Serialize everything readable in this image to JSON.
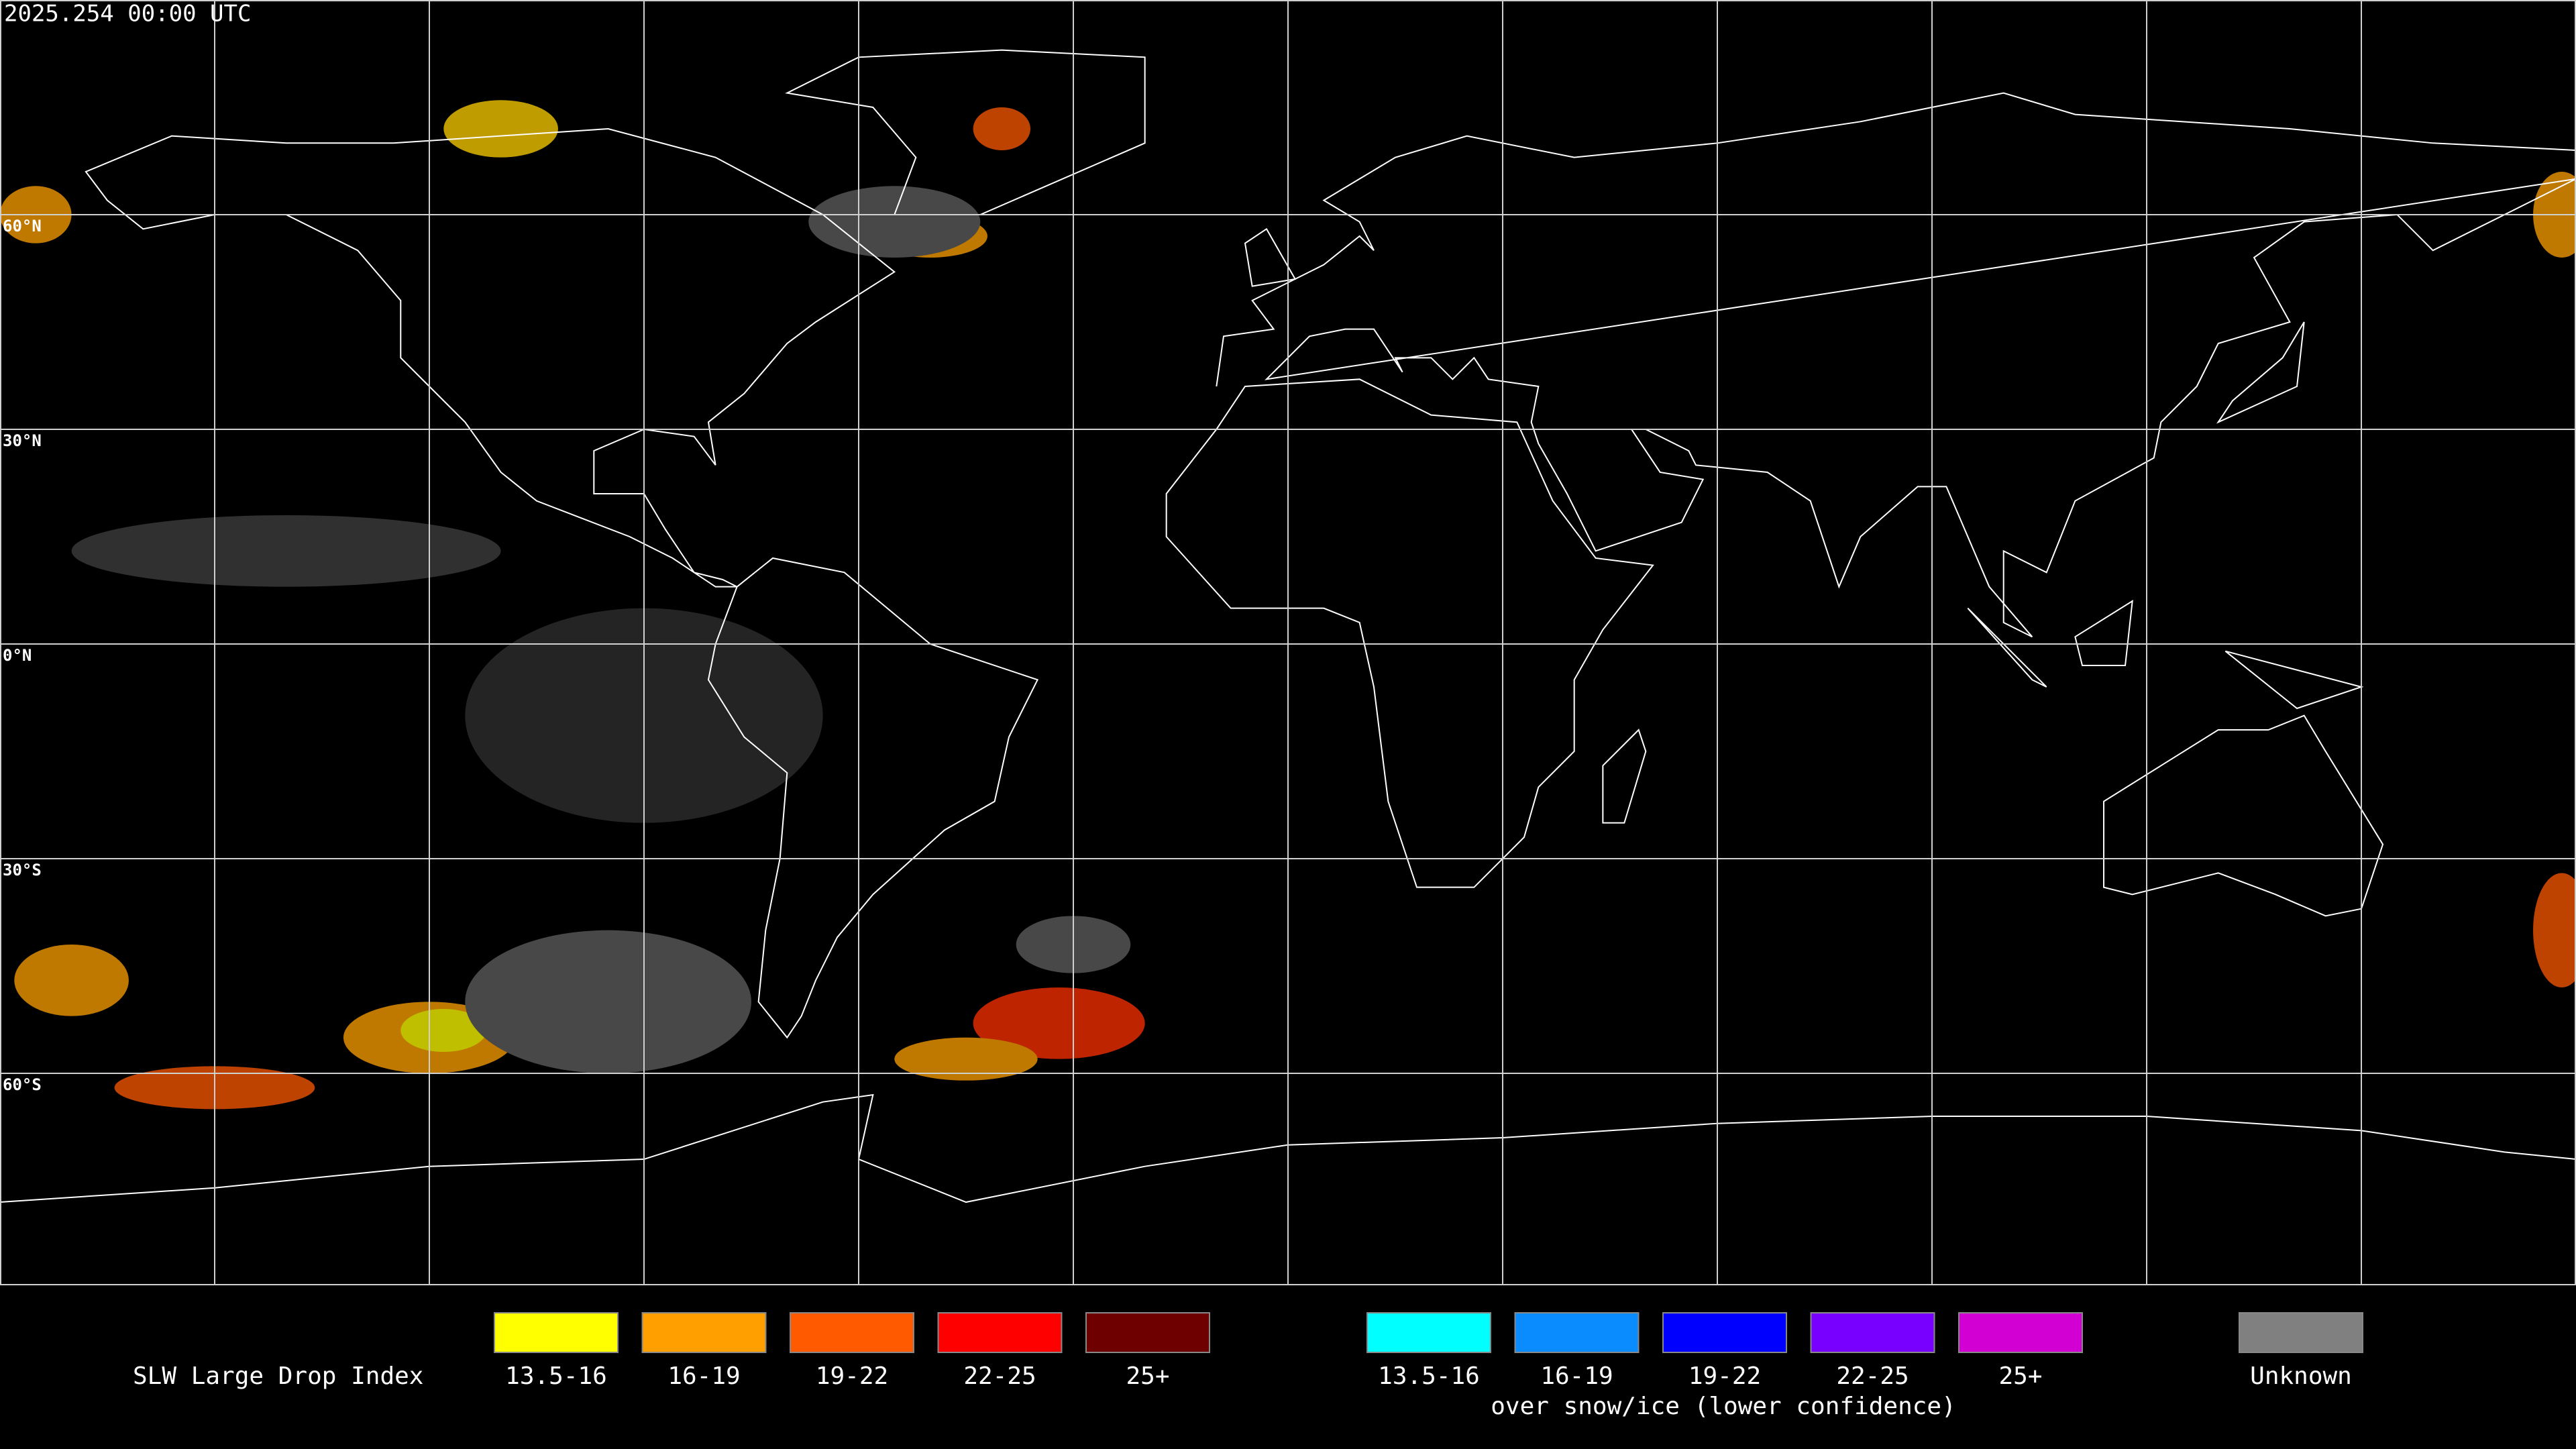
{
  "timestamp": "2025.254 00:00 UTC",
  "lat_labels": [
    "60°N",
    "30°N",
    "0°N",
    "30°S",
    "60°S"
  ],
  "legend": {
    "title": "SLW Large Drop Index",
    "items": [
      {
        "label": "13.5-16",
        "color": "#ffff00"
      },
      {
        "label": "16-19",
        "color": "#ffa000"
      },
      {
        "label": "19-22",
        "color": "#ff5a00"
      },
      {
        "label": "22-25",
        "color": "#ff0000"
      },
      {
        "label": "25+",
        "color": "#6e0000"
      }
    ],
    "snow_items": [
      {
        "label": "13.5-16",
        "color": "#00ffff"
      },
      {
        "label": "16-19",
        "color": "#0a8cff"
      },
      {
        "label": "19-22",
        "color": "#0000ff"
      },
      {
        "label": "22-25",
        "color": "#7800ff"
      },
      {
        "label": "25+",
        "color": "#d200d2"
      }
    ],
    "snow_caption": "over snow/ice (lower confidence)",
    "unknown": {
      "label": "Unknown",
      "color": "#808080"
    }
  }
}
